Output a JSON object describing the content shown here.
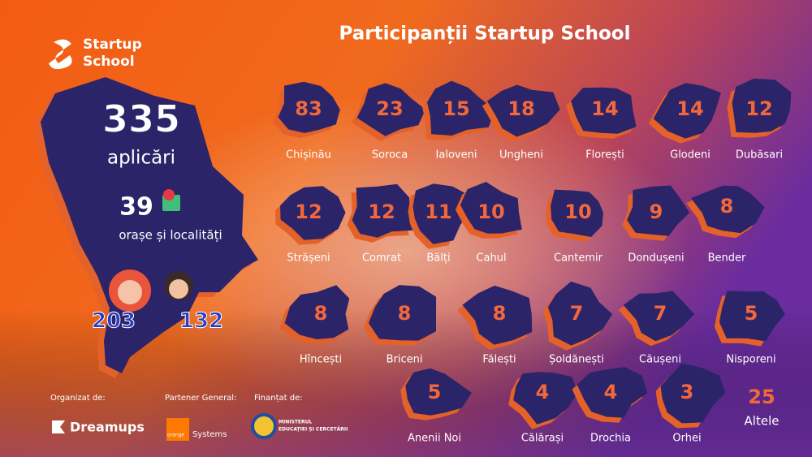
{
  "brand": [
    "Startup",
    "School"
  ],
  "title": "Participanții Startup School",
  "summary": {
    "applications": 335,
    "applications_label": "aplicări",
    "localities": 39,
    "localities_label": "orașe și localități",
    "female": 203,
    "male": 132
  },
  "regions": [
    {
      "name": "Chișinău",
      "count": 83
    },
    {
      "name": "Soroca",
      "count": 23
    },
    {
      "name": "Ialoveni",
      "count": 15
    },
    {
      "name": "Ungheni",
      "count": 18
    },
    {
      "name": "Florești",
      "count": 14
    },
    {
      "name": "Glodeni",
      "count": 14
    },
    {
      "name": "Dubăsari",
      "count": 12
    },
    {
      "name": "Strășeni",
      "count": 12
    },
    {
      "name": "Comrat",
      "count": 12
    },
    {
      "name": "Bălți",
      "count": 11
    },
    {
      "name": "Cahul",
      "count": 10
    },
    {
      "name": "Cantemir",
      "count": 10
    },
    {
      "name": "Dondușeni",
      "count": 9
    },
    {
      "name": "Bender",
      "count": 8
    },
    {
      "name": "Hîncești",
      "count": 8
    },
    {
      "name": "Briceni",
      "count": 8
    },
    {
      "name": "Fălești",
      "count": 8
    },
    {
      "name": "Șoldănești",
      "count": 7
    },
    {
      "name": "Căușeni",
      "count": 7
    },
    {
      "name": "Nisporeni",
      "count": 5
    },
    {
      "name": "Anenii Noi",
      "count": 5
    },
    {
      "name": "Călărași",
      "count": 4
    },
    {
      "name": "Drochia",
      "count": 4
    },
    {
      "name": "Orhei",
      "count": 3
    }
  ],
  "other": {
    "count": 25,
    "label": "Altele"
  },
  "footer": {
    "organizer_label": "Organizat de:",
    "organizer": "Dreamups",
    "partner_label": "Partener General:",
    "partner": "orange",
    "partner_sub": "Systems",
    "funder_label": "Finanțat de:",
    "funder": [
      "MINISTERUL",
      "EDUCAȚIEI ȘI CERCETĂRII"
    ]
  }
}
